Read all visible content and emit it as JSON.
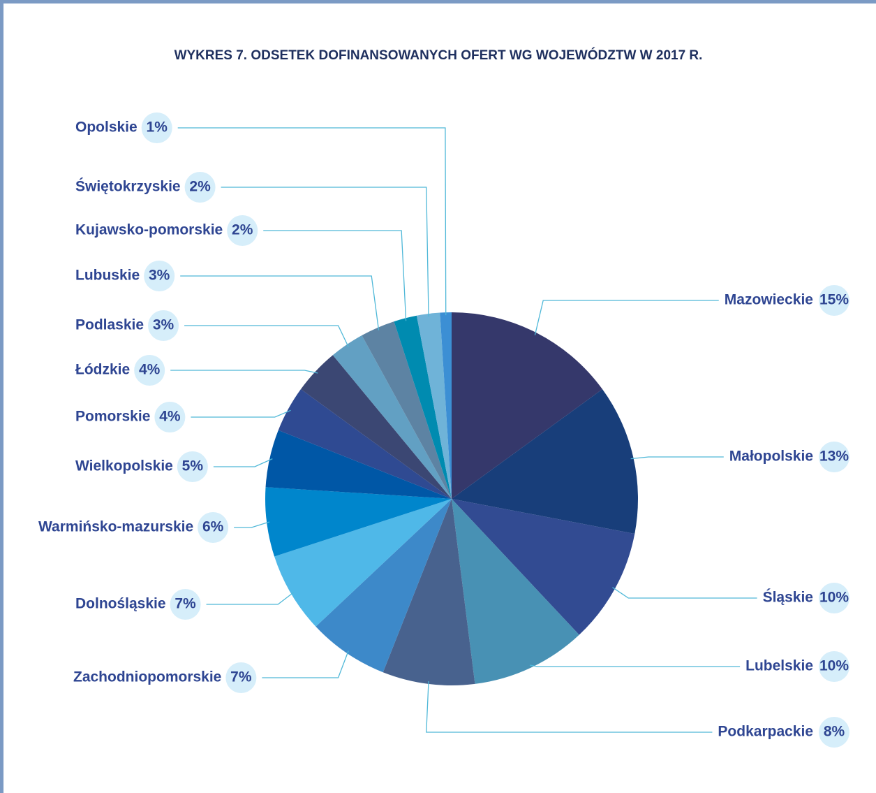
{
  "chart_data": {
    "type": "pie",
    "title": "WYKRES 7. ODSETEK  DOFINANSOWANYCH OFERT WG WOJEWÓDZTW W 2017 R.",
    "categories": [
      "Mazowieckie",
      "Małopolskie",
      "Śląskie",
      "Lubelskie",
      "Podkarpackie",
      "Zachodniopomorskie",
      "Dolnośląskie",
      "Warmińsko-mazurskie",
      "Wielkopolskie",
      "Pomorskie",
      "Łódzkie",
      "Podlaskie",
      "Lubuskie",
      "Kujawsko-pomorskie",
      "Świętokrzyskie",
      "Opolskie"
    ],
    "values": [
      15,
      13,
      10,
      10,
      8,
      7,
      7,
      6,
      5,
      4,
      4,
      3,
      3,
      2,
      2,
      1
    ],
    "value_labels": [
      "15%",
      "13%",
      "10%",
      "10%",
      "8%",
      "7%",
      "7%",
      "6%",
      "5%",
      "4%",
      "4%",
      "3%",
      "3%",
      "2%",
      "2%",
      "1%"
    ],
    "colors": [
      "#35386b",
      "#183e7a",
      "#324b92",
      "#4891b4",
      "#48628e",
      "#3d89c9",
      "#4fb8e8",
      "#0086cc",
      "#0057a6",
      "#2f4a92",
      "#3b4773",
      "#62a0c3",
      "#5d83a3",
      "#008bb0",
      "#6fb3d8",
      "#3c8fd4"
    ]
  }
}
